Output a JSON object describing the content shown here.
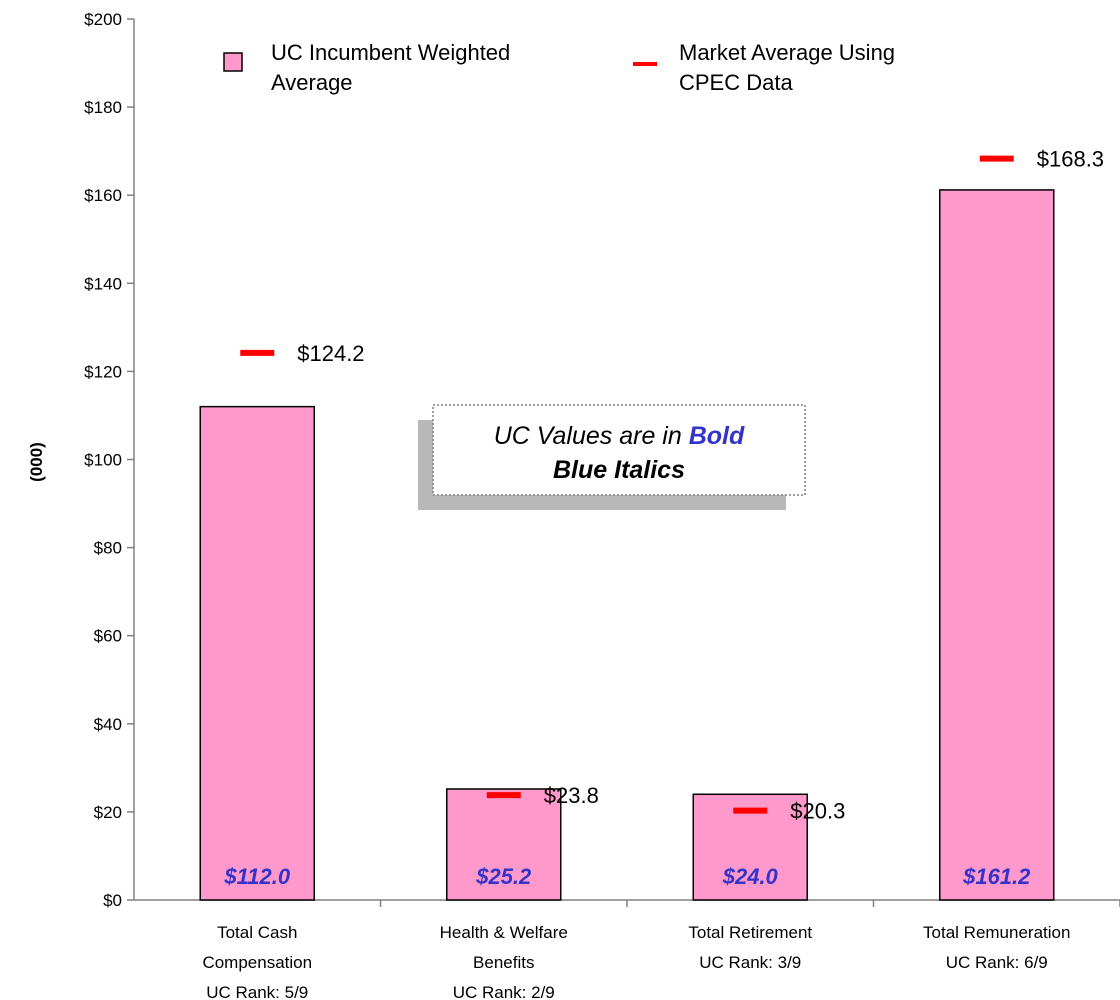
{
  "chart_data": {
    "type": "bar",
    "ylabel": "(000)",
    "ylim": [
      0,
      200
    ],
    "y_ticks": [
      0,
      20,
      40,
      60,
      80,
      100,
      120,
      140,
      160,
      180,
      200
    ],
    "y_tick_labels": [
      "$0",
      "$20",
      "$40",
      "$60",
      "$80",
      "$100",
      "$120",
      "$140",
      "$160",
      "$180",
      "$200"
    ],
    "categories": [
      [
        "Total Cash",
        "Compensation",
        "UC Rank: 5/9"
      ],
      [
        "Health & Welfare",
        "Benefits",
        "UC Rank: 2/9"
      ],
      [
        "Total Retirement",
        "UC Rank: 3/9"
      ],
      [
        "Total Remuneration",
        "UC Rank: 6/9"
      ]
    ],
    "series": [
      {
        "name": "UC Incumbent Weighted Average",
        "legend_lines": [
          "UC Incumbent Weighted",
          "Average"
        ],
        "mark": "bar",
        "values": [
          112.0,
          25.2,
          24.0,
          161.2
        ],
        "data_labels": [
          "$112.0",
          "$25.2",
          "$24.0",
          "$161.2"
        ]
      },
      {
        "name": "Market Average Using CPEC Data",
        "legend_lines": [
          "Market Average Using",
          "CPEC Data"
        ],
        "mark": "dash",
        "values": [
          124.2,
          23.8,
          20.3,
          168.3
        ],
        "data_labels": [
          "$124.2",
          "$23.8",
          "$20.3",
          "$168.3"
        ]
      }
    ],
    "annotation_lines": [
      "UC Values are in ",
      "Bold",
      "Blue Italics"
    ],
    "legend_position": "top",
    "grid": false,
    "colors": {
      "bar_fill": "#ff99cc",
      "bar_stroke": "#000000",
      "market_mark": "#ff0000",
      "uc_value_text": "#3333cc",
      "axis": "#808080"
    }
  }
}
